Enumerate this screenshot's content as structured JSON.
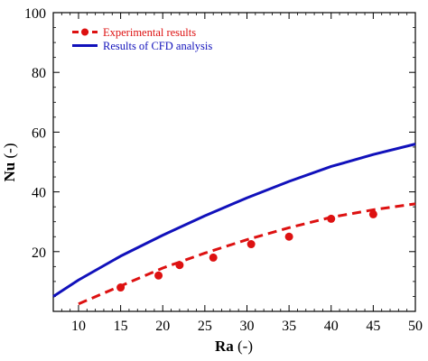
{
  "chart_data": {
    "type": "line",
    "xlabel_bold": "Ra",
    "xlabel_rest": " (-)",
    "ylabel_bold": "Nu",
    "ylabel_rest": " (-)",
    "xlim": [
      7,
      50
    ],
    "ylim": [
      0,
      100
    ],
    "xticks": [
      10,
      15,
      20,
      25,
      30,
      35,
      40,
      45,
      50
    ],
    "yticks": [
      20,
      40,
      60,
      80,
      100
    ],
    "grid": false,
    "legend_position": "top-left",
    "series": [
      {
        "name": "Experimental results",
        "style": "dashed-with-markers",
        "color": "#dd1111",
        "line_x": [
          10,
          15,
          20,
          25,
          30,
          35,
          40,
          45,
          50
        ],
        "line_y": [
          2.5,
          8.5,
          14.5,
          19.5,
          24.0,
          28.0,
          31.5,
          34.0,
          36.0
        ],
        "points_x": [
          15,
          19.5,
          22,
          26,
          30.5,
          35,
          40,
          45
        ],
        "points_y": [
          8,
          12,
          15.5,
          18,
          22.5,
          25,
          31,
          32.5
        ]
      },
      {
        "name": "Results of CFD analysis",
        "style": "solid",
        "color": "#1111bb",
        "x": [
          7,
          10,
          15,
          20,
          25,
          30,
          35,
          40,
          45,
          50
        ],
        "y": [
          5.0,
          10.5,
          18.5,
          25.5,
          32.0,
          38.0,
          43.5,
          48.5,
          52.5,
          56.0
        ]
      }
    ]
  }
}
